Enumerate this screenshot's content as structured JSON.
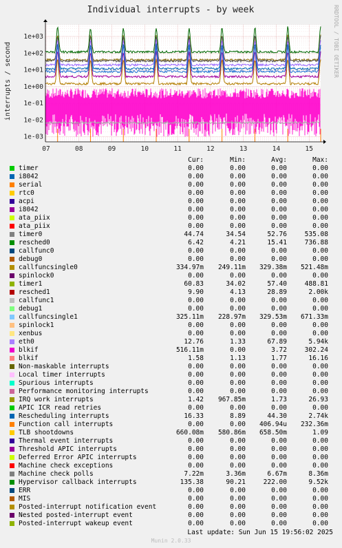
{
  "chart_data": {
    "type": "line",
    "title": "Individual interrupts - by week",
    "ylabel": "interrupts / second",
    "side_label": "RRDTOOL / TOBI OETIKER",
    "yscale": "log",
    "ylim": [
      0.0005,
      5000
    ],
    "y_ticks": [
      {
        "v": 1000,
        "label": "1e+03"
      },
      {
        "v": 100,
        "label": "1e+02"
      },
      {
        "v": 10,
        "label": "1e+01"
      },
      {
        "v": 1,
        "label": "1e+00"
      },
      {
        "v": 0.1,
        "label": "1e-01"
      },
      {
        "v": 0.01,
        "label": "1e-02"
      },
      {
        "v": 0.001,
        "label": "1e-03"
      }
    ],
    "x_ticks": [
      "07",
      "08",
      "09",
      "10",
      "11",
      "12",
      "13",
      "14",
      "15"
    ],
    "x_range": [
      6.98,
      15.35
    ],
    "spike_days": [
      7.35,
      8.35,
      9.35,
      10.35,
      11.35,
      12.35,
      13.35,
      14.35,
      15.35
    ],
    "grid": true,
    "bands": [
      {
        "name": "timer1",
        "color": "#006600",
        "level": 120
      },
      {
        "name": "resched1",
        "color": "#8c6d00",
        "level": 40
      },
      {
        "name": "timer0",
        "color": "#555555",
        "level": 35
      },
      {
        "name": "eth0",
        "color": "#9966ff",
        "level": 20
      },
      {
        "name": "resched0",
        "color": "#0066b3",
        "level": 12
      },
      {
        "name": "blkif",
        "color": "#a000a0",
        "level": 4
      },
      {
        "name": "Rescheduling interrupts",
        "color": "#1f6fd1",
        "level": 8
      },
      {
        "name": "IRQ work interrupts",
        "color": "#b37d00",
        "level": 1.5
      },
      {
        "name": "callfuncsingle",
        "color": "#ff00cc",
        "level": 0.3
      },
      {
        "name": "Machine check polls",
        "color": "#aaaaaa",
        "level": 0.007
      }
    ]
  },
  "legend": {
    "headers": [
      "Cur:",
      "Min:",
      "Avg:",
      "Max:"
    ],
    "rows": [
      {
        "name": "timer",
        "color": "#00cc00",
        "cur": "0.00",
        "min": "0.00",
        "avg": "0.00",
        "max": "0.00"
      },
      {
        "name": "i8042",
        "color": "#0066b3",
        "cur": "0.00",
        "min": "0.00",
        "avg": "0.00",
        "max": "0.00"
      },
      {
        "name": "serial",
        "color": "#ff8000",
        "cur": "0.00",
        "min": "0.00",
        "avg": "0.00",
        "max": "0.00"
      },
      {
        "name": "rtc0",
        "color": "#ffcc00",
        "cur": "0.00",
        "min": "0.00",
        "avg": "0.00",
        "max": "0.00"
      },
      {
        "name": "acpi",
        "color": "#330099",
        "cur": "0.00",
        "min": "0.00",
        "avg": "0.00",
        "max": "0.00"
      },
      {
        "name": "i8042",
        "color": "#990099",
        "cur": "0.00",
        "min": "0.00",
        "avg": "0.00",
        "max": "0.00"
      },
      {
        "name": "ata_piix",
        "color": "#ccff00",
        "cur": "0.00",
        "min": "0.00",
        "avg": "0.00",
        "max": "0.00"
      },
      {
        "name": "ata_piix",
        "color": "#ff0000",
        "cur": "0.00",
        "min": "0.00",
        "avg": "0.00",
        "max": "0.00"
      },
      {
        "name": "timer0",
        "color": "#808080",
        "cur": "44.74",
        "min": "34.54",
        "avg": "52.76",
        "max": "535.08"
      },
      {
        "name": "resched0",
        "color": "#008f00",
        "cur": "6.42",
        "min": "4.21",
        "avg": "15.41",
        "max": "736.88"
      },
      {
        "name": "callfunc0",
        "color": "#00487d",
        "cur": "0.00",
        "min": "0.00",
        "avg": "0.00",
        "max": "0.00"
      },
      {
        "name": "debug0",
        "color": "#b35a00",
        "cur": "0.00",
        "min": "0.00",
        "avg": "0.00",
        "max": "0.00"
      },
      {
        "name": "callfuncsingle0",
        "color": "#b38f00",
        "cur": "334.97m",
        "min": "249.11m",
        "avg": "329.38m",
        "max": "521.48m"
      },
      {
        "name": "spinlock0",
        "color": "#6b006b",
        "cur": "0.00",
        "min": "0.00",
        "avg": "0.00",
        "max": "0.00"
      },
      {
        "name": "timer1",
        "color": "#8fb300",
        "cur": "60.83",
        "min": "34.02",
        "avg": "57.40",
        "max": "488.81"
      },
      {
        "name": "resched1",
        "color": "#b30000",
        "cur": "9.90",
        "min": "4.13",
        "avg": "28.89",
        "max": "2.00k"
      },
      {
        "name": "callfunc1",
        "color": "#bebebe",
        "cur": "0.00",
        "min": "0.00",
        "avg": "0.00",
        "max": "0.00"
      },
      {
        "name": "debug1",
        "color": "#80ff80",
        "cur": "0.00",
        "min": "0.00",
        "avg": "0.00",
        "max": "0.00"
      },
      {
        "name": "callfuncsingle1",
        "color": "#80c9ff",
        "cur": "325.11m",
        "min": "228.97m",
        "avg": "329.53m",
        "max": "671.33m"
      },
      {
        "name": "spinlock1",
        "color": "#ffc080",
        "cur": "0.00",
        "min": "0.00",
        "avg": "0.00",
        "max": "0.00"
      },
      {
        "name": "xenbus",
        "color": "#ffe680",
        "cur": "0.00",
        "min": "0.00",
        "avg": "0.00",
        "max": "0.00"
      },
      {
        "name": "eth0",
        "color": "#aa80ff",
        "cur": "12.76",
        "min": "1.33",
        "avg": "67.89",
        "max": "5.94k"
      },
      {
        "name": "blkif",
        "color": "#ee00cc",
        "cur": "516.11m",
        "min": "0.00",
        "avg": "3.72",
        "max": "302.24"
      },
      {
        "name": "blkif",
        "color": "#ff8080",
        "cur": "1.58",
        "min": "1.13",
        "avg": "1.77",
        "max": "16.16"
      },
      {
        "name": "Non-maskable interrupts",
        "color": "#666600",
        "cur": "0.00",
        "min": "0.00",
        "avg": "0.00",
        "max": "0.00"
      },
      {
        "name": "Local timer interrupts",
        "color": "#ffbfff",
        "cur": "0.00",
        "min": "0.00",
        "avg": "0.00",
        "max": "0.00"
      },
      {
        "name": "Spurious interrupts",
        "color": "#00ffcc",
        "cur": "0.00",
        "min": "0.00",
        "avg": "0.00",
        "max": "0.00"
      },
      {
        "name": "Performance monitoring interrupts",
        "color": "#cc6699",
        "cur": "0.00",
        "min": "0.00",
        "avg": "0.00",
        "max": "0.00"
      },
      {
        "name": "IRQ work interrupts",
        "color": "#999900",
        "cur": "1.42",
        "min": "967.85m",
        "avg": "1.73",
        "max": "26.93"
      },
      {
        "name": "APIC ICR read retries",
        "color": "#00cc00",
        "cur": "0.00",
        "min": "0.00",
        "avg": "0.00",
        "max": "0.00"
      },
      {
        "name": "Rescheduling interrupts",
        "color": "#0066b3",
        "cur": "16.33",
        "min": "8.89",
        "avg": "44.30",
        "max": "2.74k"
      },
      {
        "name": "Function call interrupts",
        "color": "#ff8000",
        "cur": "0.00",
        "min": "0.00",
        "avg": "406.94u",
        "max": "232.36m"
      },
      {
        "name": "TLB shootdowns",
        "color": "#ffcc00",
        "cur": "660.08m",
        "min": "580.86m",
        "avg": "658.50m",
        "max": "1.09"
      },
      {
        "name": "Thermal event interrupts",
        "color": "#330099",
        "cur": "0.00",
        "min": "0.00",
        "avg": "0.00",
        "max": "0.00"
      },
      {
        "name": "Threshold APIC interrupts",
        "color": "#990099",
        "cur": "0.00",
        "min": "0.00",
        "avg": "0.00",
        "max": "0.00"
      },
      {
        "name": "Deferred Error APIC interrupts",
        "color": "#ccff00",
        "cur": "0.00",
        "min": "0.00",
        "avg": "0.00",
        "max": "0.00"
      },
      {
        "name": "Machine check exceptions",
        "color": "#ff0000",
        "cur": "0.00",
        "min": "0.00",
        "avg": "0.00",
        "max": "0.00"
      },
      {
        "name": "Machine check polls",
        "color": "#808080",
        "cur": "7.22m",
        "min": "3.36m",
        "avg": "6.67m",
        "max": "8.36m"
      },
      {
        "name": "Hypervisor callback interrupts",
        "color": "#008f00",
        "cur": "135.38",
        "min": "90.21",
        "avg": "222.00",
        "max": "9.52k"
      },
      {
        "name": "ERR",
        "color": "#00487d",
        "cur": "0.00",
        "min": "0.00",
        "avg": "0.00",
        "max": "0.00"
      },
      {
        "name": "MIS",
        "color": "#b35a00",
        "cur": "0.00",
        "min": "0.00",
        "avg": "0.00",
        "max": "0.00"
      },
      {
        "name": "Posted-interrupt notification event",
        "color": "#b38f00",
        "cur": "0.00",
        "min": "0.00",
        "avg": "0.00",
        "max": "0.00"
      },
      {
        "name": "Nested posted-interrupt event",
        "color": "#6b006b",
        "cur": "0.00",
        "min": "0.00",
        "avg": "0.00",
        "max": "0.00"
      },
      {
        "name": "Posted-interrupt wakeup event",
        "color": "#8fb300",
        "cur": "0.00",
        "min": "0.00",
        "avg": "0.00",
        "max": "0.00"
      }
    ]
  },
  "footer": {
    "last_update": "Last update:  Sun Jun 15 19:56:02 2025",
    "munin": "Munin 2.0.33"
  }
}
